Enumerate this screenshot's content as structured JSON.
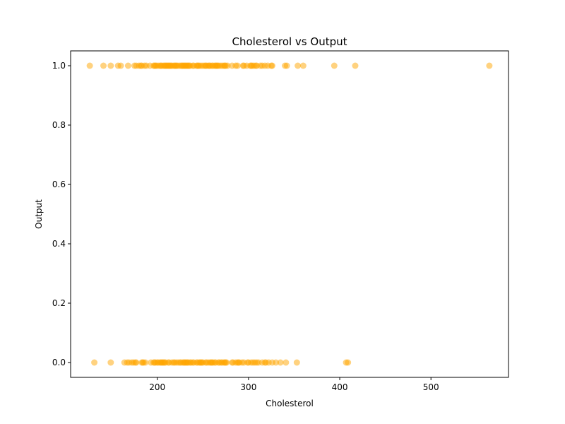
{
  "chart_data": {
    "type": "scatter",
    "title": "Cholesterol vs Output",
    "xlabel": "Cholesterol",
    "ylabel": "Output",
    "xlim": [
      105,
      585
    ],
    "ylim": [
      -0.05,
      1.05
    ],
    "xticks": [
      200,
      300,
      400,
      500
    ],
    "yticks": [
      0.0,
      0.2,
      0.4,
      0.6,
      0.8,
      1.0
    ],
    "xtick_labels": [
      "200",
      "300",
      "400",
      "500"
    ],
    "ytick_labels": [
      "0.0",
      "0.2",
      "0.4",
      "0.6",
      "0.8",
      "1.0"
    ],
    "grid": false,
    "legend": "none",
    "marker_color": "#FFA500",
    "marker_alpha": 0.5,
    "series": [
      {
        "values": [
          {
            "x": 126,
            "y": 1
          },
          {
            "x": 141,
            "y": 1
          },
          {
            "x": 149,
            "y": 1
          },
          {
            "x": 157,
            "y": 1
          },
          {
            "x": 160,
            "y": 1
          },
          {
            "x": 168,
            "y": 1
          },
          {
            "x": 175,
            "y": 1
          },
          {
            "x": 177,
            "y": 1
          },
          {
            "x": 180,
            "y": 1
          },
          {
            "x": 182,
            "y": 1
          },
          {
            "x": 183,
            "y": 1
          },
          {
            "x": 186,
            "y": 1
          },
          {
            "x": 188,
            "y": 1
          },
          {
            "x": 192,
            "y": 1
          },
          {
            "x": 196,
            "y": 1
          },
          {
            "x": 197,
            "y": 1
          },
          {
            "x": 198,
            "y": 1
          },
          {
            "x": 199,
            "y": 1
          },
          {
            "x": 201,
            "y": 1
          },
          {
            "x": 203,
            "y": 1
          },
          {
            "x": 204,
            "y": 1
          },
          {
            "x": 205,
            "y": 1
          },
          {
            "x": 207,
            "y": 1
          },
          {
            "x": 208,
            "y": 1
          },
          {
            "x": 209,
            "y": 1
          },
          {
            "x": 210,
            "y": 1
          },
          {
            "x": 211,
            "y": 1
          },
          {
            "x": 212,
            "y": 1
          },
          {
            "x": 213,
            "y": 1
          },
          {
            "x": 214,
            "y": 1
          },
          {
            "x": 215,
            "y": 1
          },
          {
            "x": 216,
            "y": 1
          },
          {
            "x": 218,
            "y": 1
          },
          {
            "x": 219,
            "y": 1
          },
          {
            "x": 220,
            "y": 1
          },
          {
            "x": 221,
            "y": 1
          },
          {
            "x": 222,
            "y": 1
          },
          {
            "x": 224,
            "y": 1
          },
          {
            "x": 226,
            "y": 1
          },
          {
            "x": 227,
            "y": 1
          },
          {
            "x": 228,
            "y": 1
          },
          {
            "x": 229,
            "y": 1
          },
          {
            "x": 230,
            "y": 1
          },
          {
            "x": 231,
            "y": 1
          },
          {
            "x": 232,
            "y": 1
          },
          {
            "x": 233,
            "y": 1
          },
          {
            "x": 234,
            "y": 1
          },
          {
            "x": 235,
            "y": 1
          },
          {
            "x": 236,
            "y": 1
          },
          {
            "x": 239,
            "y": 1
          },
          {
            "x": 240,
            "y": 1
          },
          {
            "x": 243,
            "y": 1
          },
          {
            "x": 244,
            "y": 1
          },
          {
            "x": 245,
            "y": 1
          },
          {
            "x": 246,
            "y": 1
          },
          {
            "x": 248,
            "y": 1
          },
          {
            "x": 250,
            "y": 1
          },
          {
            "x": 252,
            "y": 1
          },
          {
            "x": 253,
            "y": 1
          },
          {
            "x": 254,
            "y": 1
          },
          {
            "x": 256,
            "y": 1
          },
          {
            "x": 257,
            "y": 1
          },
          {
            "x": 258,
            "y": 1
          },
          {
            "x": 260,
            "y": 1
          },
          {
            "x": 261,
            "y": 1
          },
          {
            "x": 263,
            "y": 1
          },
          {
            "x": 264,
            "y": 1
          },
          {
            "x": 265,
            "y": 1
          },
          {
            "x": 266,
            "y": 1
          },
          {
            "x": 267,
            "y": 1
          },
          {
            "x": 269,
            "y": 1
          },
          {
            "x": 271,
            "y": 1
          },
          {
            "x": 273,
            "y": 1
          },
          {
            "x": 274,
            "y": 1
          },
          {
            "x": 275,
            "y": 1
          },
          {
            "x": 277,
            "y": 1
          },
          {
            "x": 282,
            "y": 1
          },
          {
            "x": 286,
            "y": 1
          },
          {
            "x": 288,
            "y": 1
          },
          {
            "x": 294,
            "y": 1
          },
          {
            "x": 295,
            "y": 1
          },
          {
            "x": 298,
            "y": 1
          },
          {
            "x": 302,
            "y": 1
          },
          {
            "x": 303,
            "y": 1
          },
          {
            "x": 304,
            "y": 1
          },
          {
            "x": 306,
            "y": 1
          },
          {
            "x": 308,
            "y": 1
          },
          {
            "x": 309,
            "y": 1
          },
          {
            "x": 313,
            "y": 1
          },
          {
            "x": 315,
            "y": 1
          },
          {
            "x": 318,
            "y": 1
          },
          {
            "x": 321,
            "y": 1
          },
          {
            "x": 325,
            "y": 1
          },
          {
            "x": 326,
            "y": 1
          },
          {
            "x": 340,
            "y": 1
          },
          {
            "x": 342,
            "y": 1
          },
          {
            "x": 354,
            "y": 1
          },
          {
            "x": 360,
            "y": 1
          },
          {
            "x": 394,
            "y": 1
          },
          {
            "x": 417,
            "y": 1
          },
          {
            "x": 564,
            "y": 1
          },
          {
            "x": 131,
            "y": 0
          },
          {
            "x": 149,
            "y": 0
          },
          {
            "x": 164,
            "y": 0
          },
          {
            "x": 167,
            "y": 0
          },
          {
            "x": 169,
            "y": 0
          },
          {
            "x": 172,
            "y": 0
          },
          {
            "x": 174,
            "y": 0
          },
          {
            "x": 176,
            "y": 0
          },
          {
            "x": 177,
            "y": 0
          },
          {
            "x": 183,
            "y": 0
          },
          {
            "x": 184,
            "y": 0
          },
          {
            "x": 185,
            "y": 0
          },
          {
            "x": 187,
            "y": 0
          },
          {
            "x": 193,
            "y": 0
          },
          {
            "x": 196,
            "y": 0
          },
          {
            "x": 197,
            "y": 0
          },
          {
            "x": 198,
            "y": 0
          },
          {
            "x": 200,
            "y": 0
          },
          {
            "x": 201,
            "y": 0
          },
          {
            "x": 203,
            "y": 0
          },
          {
            "x": 204,
            "y": 0
          },
          {
            "x": 205,
            "y": 0
          },
          {
            "x": 206,
            "y": 0
          },
          {
            "x": 207,
            "y": 0
          },
          {
            "x": 208,
            "y": 0
          },
          {
            "x": 209,
            "y": 0
          },
          {
            "x": 212,
            "y": 0
          },
          {
            "x": 213,
            "y": 0
          },
          {
            "x": 216,
            "y": 0
          },
          {
            "x": 218,
            "y": 0
          },
          {
            "x": 219,
            "y": 0
          },
          {
            "x": 221,
            "y": 0
          },
          {
            "x": 223,
            "y": 0
          },
          {
            "x": 225,
            "y": 0
          },
          {
            "x": 226,
            "y": 0
          },
          {
            "x": 228,
            "y": 0
          },
          {
            "x": 229,
            "y": 0
          },
          {
            "x": 230,
            "y": 0
          },
          {
            "x": 231,
            "y": 0
          },
          {
            "x": 232,
            "y": 0
          },
          {
            "x": 233,
            "y": 0
          },
          {
            "x": 234,
            "y": 0
          },
          {
            "x": 236,
            "y": 0
          },
          {
            "x": 237,
            "y": 0
          },
          {
            "x": 239,
            "y": 0
          },
          {
            "x": 240,
            "y": 0
          },
          {
            "x": 243,
            "y": 0
          },
          {
            "x": 244,
            "y": 0
          },
          {
            "x": 246,
            "y": 0
          },
          {
            "x": 247,
            "y": 0
          },
          {
            "x": 248,
            "y": 0
          },
          {
            "x": 249,
            "y": 0
          },
          {
            "x": 250,
            "y": 0
          },
          {
            "x": 253,
            "y": 0
          },
          {
            "x": 254,
            "y": 0
          },
          {
            "x": 256,
            "y": 0
          },
          {
            "x": 258,
            "y": 0
          },
          {
            "x": 259,
            "y": 0
          },
          {
            "x": 260,
            "y": 0
          },
          {
            "x": 261,
            "y": 0
          },
          {
            "x": 263,
            "y": 0
          },
          {
            "x": 264,
            "y": 0
          },
          {
            "x": 267,
            "y": 0
          },
          {
            "x": 268,
            "y": 0
          },
          {
            "x": 270,
            "y": 0
          },
          {
            "x": 271,
            "y": 0
          },
          {
            "x": 273,
            "y": 0
          },
          {
            "x": 274,
            "y": 0
          },
          {
            "x": 275,
            "y": 0
          },
          {
            "x": 276,
            "y": 0
          },
          {
            "x": 282,
            "y": 0
          },
          {
            "x": 283,
            "y": 0
          },
          {
            "x": 286,
            "y": 0
          },
          {
            "x": 288,
            "y": 0
          },
          {
            "x": 289,
            "y": 0
          },
          {
            "x": 290,
            "y": 0
          },
          {
            "x": 293,
            "y": 0
          },
          {
            "x": 295,
            "y": 0
          },
          {
            "x": 299,
            "y": 0
          },
          {
            "x": 300,
            "y": 0
          },
          {
            "x": 303,
            "y": 0
          },
          {
            "x": 305,
            "y": 0
          },
          {
            "x": 307,
            "y": 0
          },
          {
            "x": 309,
            "y": 0
          },
          {
            "x": 311,
            "y": 0
          },
          {
            "x": 315,
            "y": 0
          },
          {
            "x": 318,
            "y": 0
          },
          {
            "x": 319,
            "y": 0
          },
          {
            "x": 322,
            "y": 0
          },
          {
            "x": 326,
            "y": 0
          },
          {
            "x": 330,
            "y": 0
          },
          {
            "x": 335,
            "y": 0
          },
          {
            "x": 341,
            "y": 0
          },
          {
            "x": 353,
            "y": 0
          },
          {
            "x": 407,
            "y": 0
          },
          {
            "x": 409,
            "y": 0
          }
        ]
      }
    ]
  }
}
